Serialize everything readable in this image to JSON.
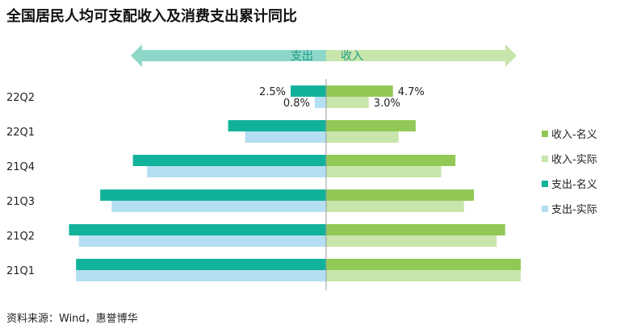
{
  "title": "全国居民人均可支配收入及消费支出累计同比",
  "source": "资料来源：Wind，惠誉博华",
  "arrows": {
    "left_label": "支出",
    "right_label": "收入"
  },
  "colors": {
    "income_nominal": "#92c956",
    "income_real": "#c8e5ab",
    "expense_nominal": "#12b29a",
    "expense_real": "#b4def2",
    "arrow_left": "#8dd7c8",
    "arrow_right": "#c8e5ab",
    "arrow_text": "#1e9b88"
  },
  "chart_data": {
    "type": "bar",
    "orientation": "horizontal-diverging",
    "categories": [
      "22Q2",
      "22Q1",
      "21Q4",
      "21Q3",
      "21Q2",
      "21Q1"
    ],
    "series": [
      {
        "name": "收入-名义",
        "side": "right",
        "values": [
          4.7,
          6.3,
          9.1,
          10.4,
          12.6,
          13.7
        ]
      },
      {
        "name": "收入-实际",
        "side": "right",
        "values": [
          3.0,
          5.1,
          8.1,
          9.7,
          12.0,
          13.7
        ]
      },
      {
        "name": "支出-名义",
        "side": "left",
        "values": [
          2.5,
          6.9,
          13.6,
          15.9,
          18.1,
          17.6
        ]
      },
      {
        "name": "支出-实际",
        "side": "left",
        "values": [
          0.8,
          5.7,
          12.6,
          15.1,
          17.4,
          17.6
        ]
      }
    ],
    "data_labels": [
      {
        "text": "2.5%",
        "series": "支出-名义",
        "category": "22Q2"
      },
      {
        "text": "0.8%",
        "series": "支出-实际",
        "category": "22Q2"
      },
      {
        "text": "4.7%",
        "series": "收入-名义",
        "category": "22Q2"
      },
      {
        "text": "3.0%",
        "series": "收入-实际",
        "category": "22Q2"
      }
    ],
    "legend_position": "right",
    "grid": false
  }
}
